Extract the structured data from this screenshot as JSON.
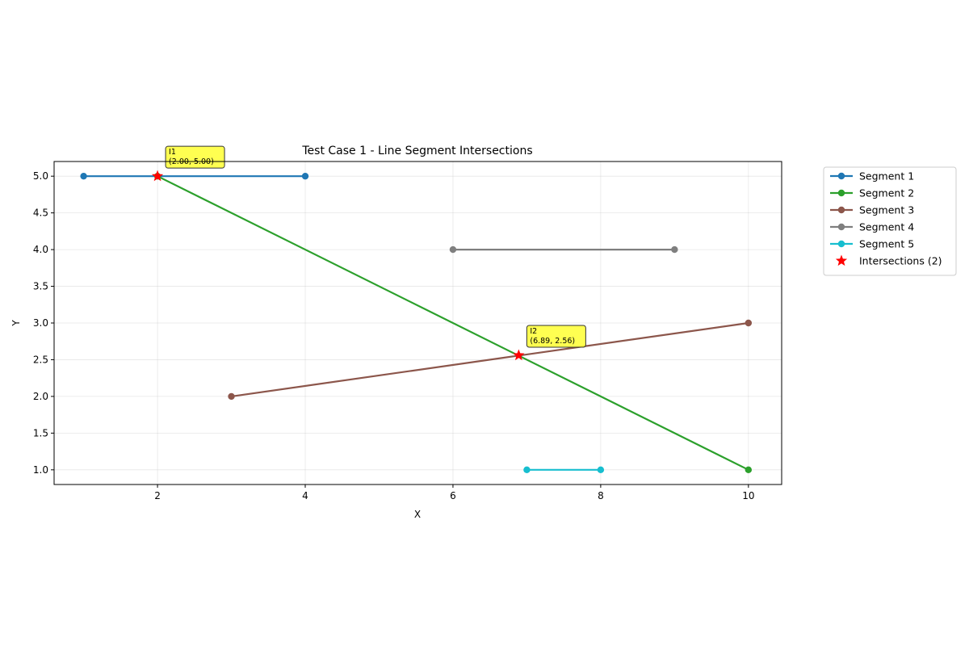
{
  "chart_data": {
    "type": "line",
    "title": "Test Case 1 - Line Segment Intersections",
    "xlabel": "X",
    "ylabel": "Y",
    "xlim": [
      0.6,
      10.45
    ],
    "ylim": [
      0.8,
      5.2
    ],
    "xticks": [
      2,
      4,
      6,
      8,
      10
    ],
    "xtick_labels": [
      "2",
      "4",
      "6",
      "8",
      "10"
    ],
    "yticks": [
      1.0,
      1.5,
      2.0,
      2.5,
      3.0,
      3.5,
      4.0,
      4.5,
      5.0
    ],
    "ytick_labels": [
      "1.0",
      "1.5",
      "2.0",
      "2.5",
      "3.0",
      "3.5",
      "4.0",
      "4.5",
      "5.0"
    ],
    "grid": true,
    "legend_position": "outside-top-right",
    "series": [
      {
        "name": "Segment 1",
        "color": "#1f77b4",
        "points": [
          [
            1,
            5
          ],
          [
            4,
            5
          ]
        ]
      },
      {
        "name": "Segment 2",
        "color": "#2ca02c",
        "points": [
          [
            2,
            5
          ],
          [
            10,
            1
          ]
        ]
      },
      {
        "name": "Segment 3",
        "color": "#8c564b",
        "points": [
          [
            3,
            2
          ],
          [
            10,
            3
          ]
        ]
      },
      {
        "name": "Segment 4",
        "color": "#7f7f7f",
        "points": [
          [
            6,
            4
          ],
          [
            9,
            4
          ]
        ]
      },
      {
        "name": "Segment 5",
        "color": "#17becf",
        "points": [
          [
            7,
            1
          ],
          [
            8,
            1
          ]
        ]
      }
    ],
    "intersections": {
      "name": "Intersections (2)",
      "color": "#ff0000",
      "marker": "star",
      "points": [
        {
          "x": 2.0,
          "y": 5.0,
          "label_line1": "I1",
          "label_line2": "(2.00, 5.00)"
        },
        {
          "x": 6.89,
          "y": 2.56,
          "label_line1": "I2",
          "label_line2": "(6.89, 2.56)"
        }
      ]
    },
    "annotation_color": "#ffff33"
  }
}
